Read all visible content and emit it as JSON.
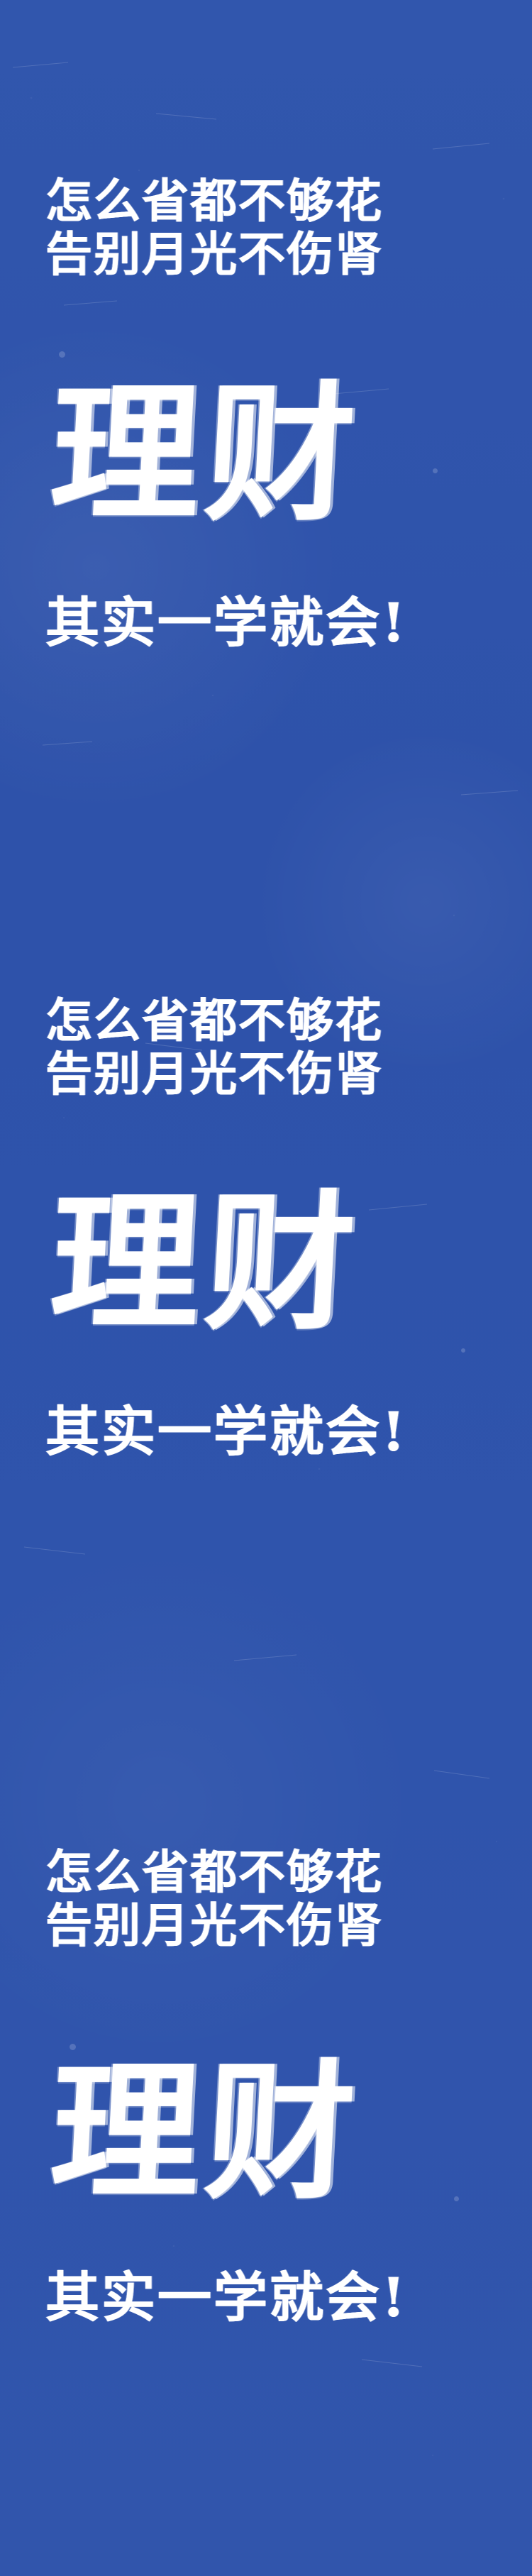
{
  "poster": {
    "background_color": "#2f53ab",
    "text_color": "#ffffff",
    "blocks": [
      {
        "line1": "怎么省都不够花",
        "line2": "告别月光不伤肾",
        "headline": "理财",
        "subline": "其实一学就会!"
      },
      {
        "line1": "怎么省都不够花",
        "line2": "告别月光不伤肾",
        "headline": "理财",
        "subline": "其实一学就会!"
      },
      {
        "line1": "怎么省都不够花",
        "line2": "告别月光不伤肾",
        "headline": "理财",
        "subline": "其实一学就会!"
      }
    ]
  }
}
